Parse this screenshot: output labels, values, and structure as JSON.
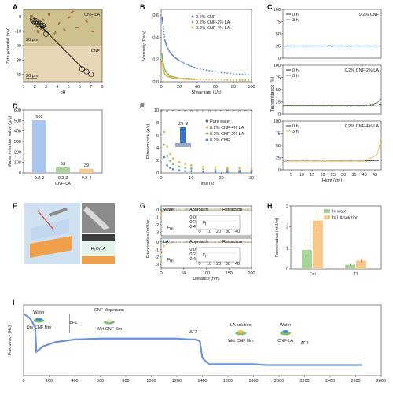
{
  "colors": {
    "blue": "#5b86d6",
    "green": "#7cc36a",
    "orange": "#f0b44a",
    "darkgreen": "#4d8a3e",
    "peach": "#f7c98a",
    "lgreen": "#a9d39a",
    "lblue": "#a9c4ee"
  },
  "panels": {
    "A": {
      "label": "A",
      "ylabel": "Zeta potential (mV)",
      "xlabel": "pH",
      "inset1": "CNF-LA",
      "inset2": "CNF",
      "scale1": "20 μm",
      "scale2": "20 μm",
      "xticks": [
        "1",
        "2",
        "3",
        "4",
        "5",
        "6",
        "7",
        "8"
      ],
      "yticks": [
        "0",
        "-10",
        "-20",
        "-30",
        "-40"
      ]
    },
    "B": {
      "label": "B",
      "ylabel": "Viscosity (Pa.s)",
      "xlabel": "Shear rate (1/s)",
      "legend": [
        "0.2% CNF",
        "0.2% CNF-2% LA",
        "0.2% CNF-4% LA"
      ],
      "xticks": [
        "0",
        "20",
        "40",
        "60",
        "80",
        "100"
      ],
      "yticks": [
        "0.0",
        "0.2",
        "0.4",
        "0.6"
      ]
    },
    "C": {
      "label": "C",
      "ylabel": "Transmittance (%)",
      "xlabel": "Hight (cm)",
      "legend": [
        "0 h",
        "3 h"
      ],
      "titles": [
        "0.2% CNF",
        "0.2% CNF-2% LA",
        "0.2% CNF-4% LA"
      ],
      "xticks": [
        "5",
        "10",
        "15",
        "20",
        "25",
        "30",
        "35",
        "40",
        "45"
      ],
      "yticks": [
        "0",
        "25",
        "50",
        "75",
        "100"
      ]
    },
    "D": {
      "label": "D",
      "ylabel": "Water retention value (g/g)",
      "xlabel": "CNF-LA",
      "xticks": [
        "0.2-0",
        "0.2-2",
        "0.2-4"
      ],
      "yticks": [
        "0",
        "100",
        "200",
        "300",
        "400",
        "500",
        "600"
      ]
    },
    "E": {
      "label": "E",
      "ylabel": "Filtration rate (g/s)",
      "xlabel": "Time (s)",
      "legend": [
        "Pure water",
        "0.2% CNF-4% LA",
        "0.2% CNF-2% LA",
        "0.2% CNF"
      ],
      "pressure": "25 N",
      "xticks": [
        "0",
        "10",
        "20",
        "30"
      ],
      "yticks": [
        "0",
        "2",
        "4",
        "6",
        "8",
        "10"
      ]
    },
    "F": {
      "label": "F",
      "tag": "H₂O/LA"
    },
    "G": {
      "label": "G",
      "ylabel": "Force/radius (mN/m)",
      "xlabel": "Distance (nm)",
      "top": {
        "name": "Water",
        "approach": "Approach",
        "retraction": "Retraction",
        "fm": "F",
        "fmsub": "m",
        "fi": "F",
        "fisub": "I"
      },
      "bottom": {
        "name": "LA",
        "approach": "Approach",
        "retraction": "Retraction",
        "fm": "F",
        "fmsub": "m",
        "fi": "F",
        "fisub": "I"
      },
      "xticks": [
        "0",
        "50",
        "100",
        "150",
        "200"
      ],
      "yticks": [
        "0",
        "-1",
        "-2",
        "-3"
      ],
      "insetx": [
        "0",
        "10",
        "20",
        "30",
        "40"
      ],
      "insety": [
        "0.0",
        "-0.2",
        "-0.4"
      ]
    },
    "H": {
      "label": "H",
      "ylabel": "Force/radius (mN/m)",
      "legend": [
        "In water",
        "In LA solution"
      ],
      "xticks": [
        "Fm",
        "FI"
      ],
      "yticks": [
        "0",
        "1",
        "2",
        "3"
      ]
    },
    "I": {
      "label": "I",
      "ylabel": "Frequency (Hz)",
      "xticks": [
        "0",
        "200",
        "400",
        "600",
        "800",
        "1000",
        "1200",
        "1400",
        "1600",
        "1800",
        "2000",
        "2200",
        "2400",
        "2600",
        "2800"
      ],
      "annotations": [
        "Water",
        "Dry CNF film",
        "ΔF1",
        "CNF dispersion",
        "Wet CNF film",
        "ΔF2",
        "LA solution",
        "Wet CNF film",
        "Water",
        "CNF-LA",
        "ΔF3"
      ]
    }
  },
  "chart_data": [
    {
      "type": "scatter",
      "title": "",
      "xlabel": "pH",
      "ylabel": "Zeta potential (mV)",
      "xlim": [
        1,
        8
      ],
      "ylim": [
        -45,
        5
      ],
      "series": [
        {
          "name": "CNF-LA",
          "x": [
            1.8,
            1.9,
            2.0,
            2.1,
            2.2,
            2.3,
            2.4,
            2.5,
            2.6,
            2.7,
            2.8,
            3.0
          ],
          "y": [
            -2,
            -3,
            -4,
            -3,
            -5,
            -4,
            -6,
            -5,
            -7,
            -6,
            -8,
            -12
          ]
        },
        {
          "name": "CNF",
          "x": [
            6.2,
            6.6,
            7.0
          ],
          "y": [
            -36,
            -38,
            -40
          ]
        }
      ]
    },
    {
      "type": "line",
      "xlabel": "Shear rate (1/s)",
      "ylabel": "Viscosity (Pa.s)",
      "xlim": [
        0,
        100
      ],
      "ylim": [
        0,
        0.65
      ],
      "series": [
        {
          "name": "0.2% CNF",
          "x": [
            1,
            2,
            4,
            6,
            10,
            15,
            20,
            30,
            40,
            60,
            80,
            100
          ],
          "y": [
            0.58,
            0.52,
            0.38,
            0.32,
            0.26,
            0.22,
            0.19,
            0.15,
            0.12,
            0.09,
            0.07,
            0.06
          ]
        },
        {
          "name": "0.2% CNF-2% LA",
          "x": [
            1,
            2,
            4,
            6,
            10,
            15,
            20,
            30,
            40,
            60,
            80,
            100
          ],
          "y": [
            0.25,
            0.18,
            0.11,
            0.08,
            0.05,
            0.04,
            0.03,
            0.03,
            0.02,
            0.02,
            0.02,
            0.02
          ]
        },
        {
          "name": "0.2% CNF-4% LA",
          "x": [
            1,
            2,
            4,
            6,
            10,
            15,
            20,
            30,
            40,
            60,
            80,
            100
          ],
          "y": [
            0.18,
            0.12,
            0.07,
            0.05,
            0.04,
            0.03,
            0.03,
            0.02,
            0.02,
            0.02,
            0.01,
            0.01
          ]
        }
      ]
    },
    {
      "type": "line",
      "title": "0.2% CNF",
      "xlabel": "Hight (cm)",
      "ylabel": "Transmittance (%)",
      "xlim": [
        1,
        48
      ],
      "ylim": [
        0,
        100
      ],
      "series": [
        {
          "name": "0 h",
          "x": [
            1,
            10,
            20,
            30,
            40,
            48
          ],
          "y": [
            25,
            25,
            25,
            25,
            25,
            25
          ]
        },
        {
          "name": "3 h",
          "x": [
            1,
            10,
            20,
            30,
            40,
            48
          ],
          "y": [
            25,
            25,
            25,
            25,
            25,
            25
          ]
        }
      ]
    },
    {
      "type": "line",
      "title": "0.2% CNF-2% LA",
      "xlim": [
        1,
        48
      ],
      "ylim": [
        0,
        100
      ],
      "series": [
        {
          "name": "0 h",
          "x": [
            1,
            10,
            20,
            30,
            40,
            46,
            48
          ],
          "y": [
            17,
            17,
            17,
            17,
            17,
            18,
            20
          ]
        },
        {
          "name": "3 h",
          "x": [
            1,
            10,
            20,
            30,
            40,
            46,
            48
          ],
          "y": [
            17,
            17,
            17,
            17,
            17,
            22,
            32
          ]
        }
      ]
    },
    {
      "type": "line",
      "title": "0.2% CNF-4% LA",
      "xlim": [
        1,
        48
      ],
      "ylim": [
        0,
        100
      ],
      "series": [
        {
          "name": "0 h",
          "x": [
            1,
            10,
            20,
            30,
            40,
            46,
            48
          ],
          "y": [
            18,
            18,
            18,
            18,
            18,
            19,
            20
          ]
        },
        {
          "name": "3 h",
          "x": [
            1,
            10,
            20,
            30,
            40,
            46,
            48
          ],
          "y": [
            18,
            18,
            18,
            18,
            18,
            30,
            65
          ]
        }
      ]
    },
    {
      "type": "bar",
      "xlabel": "CNF-LA",
      "ylabel": "Water retention value (g/g)",
      "categories": [
        "0.2-0",
        "0.2-2",
        "0.2-4"
      ],
      "values": [
        502,
        53,
        39
      ],
      "ylim": [
        0,
        600
      ]
    },
    {
      "type": "scatter",
      "xlabel": "Time (s)",
      "ylabel": "Filtration rate (g/s)",
      "xlim": [
        0,
        30
      ],
      "ylim": [
        0,
        10
      ],
      "series": [
        {
          "name": "Pure water",
          "x": [
            0,
            2,
            4,
            6,
            8,
            10,
            12,
            14,
            16,
            18,
            20,
            22,
            24,
            26,
            28,
            30
          ],
          "y": [
            9.8,
            9.8,
            9.8,
            9.8,
            9.8,
            9.8,
            9.8,
            9.8,
            9.8,
            9.8,
            9.8,
            9.8,
            9.8,
            9.8,
            9.8,
            9.8
          ]
        },
        {
          "name": "0.2% CNF-4% LA",
          "x": [
            1,
            2,
            3,
            4,
            6,
            8,
            10,
            14,
            18,
            22,
            26,
            30
          ],
          "y": [
            6.5,
            4.2,
            3.0,
            2.3,
            1.7,
            1.4,
            1.2,
            1.0,
            0.9,
            0.8,
            0.8,
            0.7
          ]
        },
        {
          "name": "0.2% CNF-2% LA",
          "x": [
            1,
            2,
            3,
            4,
            6,
            8,
            10,
            14,
            18,
            22,
            26,
            30
          ],
          "y": [
            4.5,
            2.7,
            1.9,
            1.4,
            1.0,
            0.8,
            0.7,
            0.6,
            0.5,
            0.5,
            0.4,
            0.4
          ]
        },
        {
          "name": "0.2% CNF",
          "x": [
            1,
            2,
            3,
            4,
            6,
            8,
            10,
            14,
            18,
            22,
            26,
            30
          ],
          "y": [
            2.5,
            1.2,
            0.8,
            0.6,
            0.4,
            0.3,
            0.3,
            0.2,
            0.2,
            0.2,
            0.2,
            0.2
          ]
        }
      ]
    },
    {
      "type": "line",
      "title": "Water",
      "xlabel": "Distance (nm)",
      "ylabel": "Force/radius (mN/m)",
      "xlim": [
        0,
        200
      ],
      "ylim": [
        -3.5,
        0.5
      ],
      "series": [
        {
          "name": "Approach",
          "x": [
            0,
            10,
            25,
            50,
            100,
            150,
            200
          ],
          "y": [
            0,
            0,
            0,
            0,
            0,
            0,
            0
          ]
        },
        {
          "name": "Retraction",
          "x": [
            0,
            3,
            6,
            10,
            25,
            50,
            200
          ],
          "y": [
            -1.1,
            -0.3,
            -0.1,
            0,
            0,
            0,
            0
          ]
        }
      ]
    },
    {
      "type": "line",
      "title": "LA",
      "xlabel": "Distance (nm)",
      "ylabel": "Force/radius (mN/m)",
      "xlim": [
        0,
        200
      ],
      "ylim": [
        -3.5,
        0.5
      ],
      "series": [
        {
          "name": "Approach",
          "x": [
            0,
            10,
            25,
            50,
            100,
            150,
            200
          ],
          "y": [
            0,
            0,
            0,
            0,
            0,
            0,
            0
          ]
        },
        {
          "name": "Retraction",
          "x": [
            0,
            3,
            6,
            10,
            15,
            25,
            50,
            200
          ],
          "y": [
            -2.6,
            -1.4,
            -0.6,
            -0.3,
            -0.2,
            -0.1,
            0,
            0
          ]
        }
      ]
    },
    {
      "type": "bar",
      "ylabel": "Force/radius (mN/m)",
      "categories": [
        "Fm",
        "FI"
      ],
      "ylim": [
        0,
        3
      ],
      "series": [
        {
          "name": "In water",
          "values": [
            0.9,
            0.2
          ],
          "err": [
            0.3,
            0.05
          ]
        },
        {
          "name": "In LA solution",
          "values": [
            2.3,
            0.4
          ],
          "err": [
            0.5,
            0.08
          ]
        }
      ]
    },
    {
      "type": "line",
      "ylabel": "Frequency (Hz)",
      "xlim": [
        0,
        2800
      ],
      "series": [
        {
          "name": "",
          "x": [
            0,
            50,
            90,
            100,
            150,
            250,
            400,
            600,
            900,
            1200,
            1300,
            1310,
            1350,
            1380,
            1400,
            1450,
            1600,
            1800,
            1900,
            2000,
            2100,
            2200,
            2400,
            2650
          ],
          "y": [
            -5,
            -10,
            -20,
            -48,
            -42,
            -37,
            -34,
            -33,
            -33,
            -33,
            -34,
            -34,
            -34,
            -36,
            -55,
            -62,
            -62,
            -62,
            -63,
            -63,
            -63,
            -63,
            -63,
            -63
          ]
        }
      ]
    }
  ]
}
